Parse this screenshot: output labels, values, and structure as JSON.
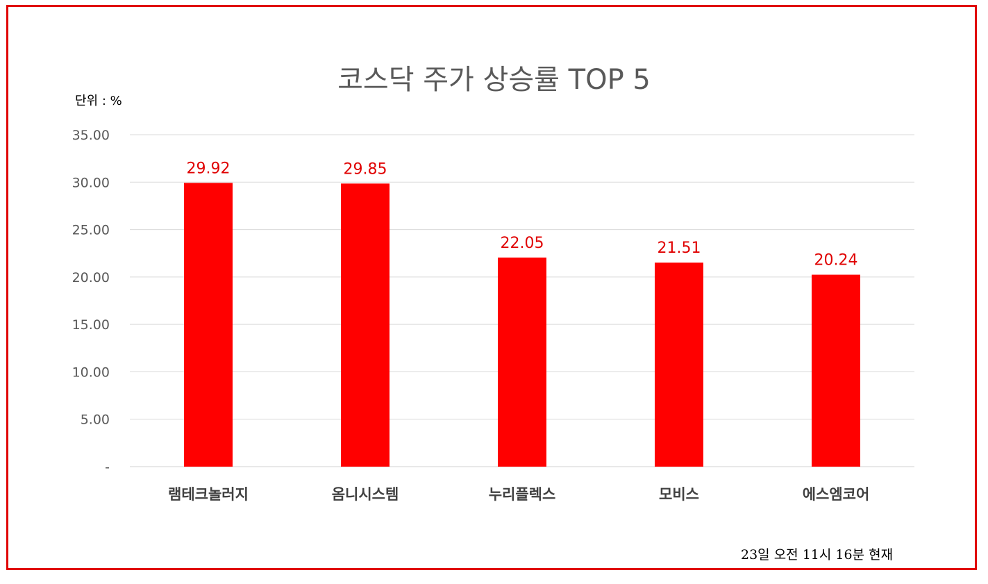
{
  "chart_data": {
    "type": "bar",
    "title": "코스닥 주가 상승률 TOP 5",
    "unit_label": "단위 : %",
    "footnote": "23일  오전 11시 16분 현재",
    "categories": [
      "램테크놀러지",
      "옴니시스템",
      "누리플렉스",
      "모비스",
      "에스엠코어"
    ],
    "values": [
      29.92,
      29.85,
      22.05,
      21.51,
      20.24
    ],
    "data_labels": [
      "29.92",
      "29.85",
      "22.05",
      "21.51",
      "20.24"
    ],
    "ylim": [
      0,
      35
    ],
    "yticks": [
      0,
      5,
      10,
      15,
      20,
      25,
      30,
      35
    ],
    "ytick_labels": [
      "-",
      "5.00",
      "10.00",
      "15.00",
      "20.00",
      "25.00",
      "30.00",
      "35.00"
    ],
    "grid": true,
    "bar_color": "#ff0000",
    "label_color": "#e00000"
  }
}
